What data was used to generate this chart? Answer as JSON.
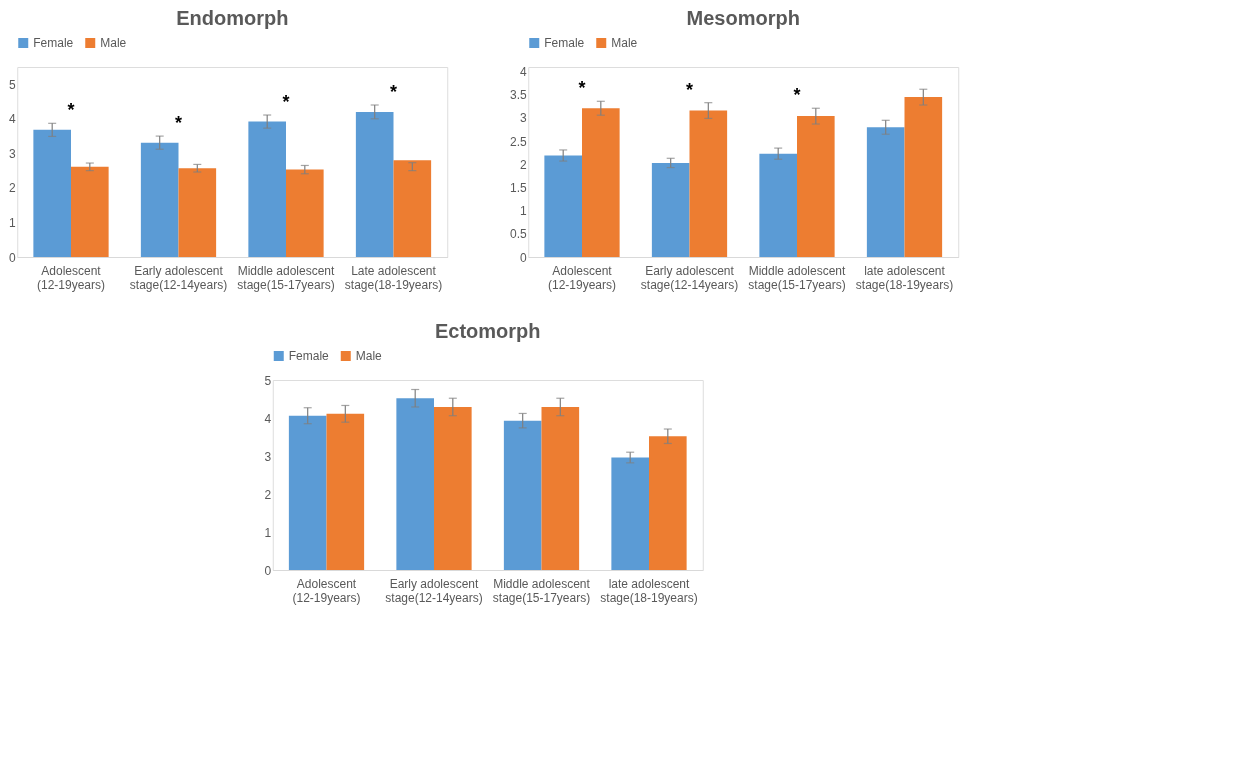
{
  "chart_data": [
    {
      "type": "bar",
      "title": "Endomorph",
      "categories": [
        "Adolescent (12-19years)",
        "Early adolescent stage(12-14years)",
        "Middle adolescent stage(15-17years)",
        "Late adolescent stage(18-19years)"
      ],
      "series": [
        {
          "name": "Female",
          "color": "#5b9bd5",
          "values": [
            3.68,
            3.31,
            3.92,
            4.2
          ],
          "errors": [
            0.19,
            0.19,
            0.19,
            0.2
          ]
        },
        {
          "name": "Male",
          "color": "#ed7d31",
          "values": [
            2.61,
            2.57,
            2.53,
            2.8
          ],
          "errors": [
            0.11,
            0.11,
            0.12,
            [
              2.5,
              2.73
            ]
          ]
        }
      ],
      "ylim": [
        0,
        5.5
      ],
      "yticks": [
        0,
        1,
        2,
        3,
        4,
        5
      ],
      "grid": false,
      "legend": "top",
      "annotations": [
        "*",
        "*",
        "*",
        "*"
      ]
    },
    {
      "type": "bar",
      "title": "Mesomorph",
      "categories": [
        "Adolescent (12-19years)",
        "Early adolescent stage(12-14years)",
        "Middle adolescent stage(15-17years)",
        "late adolescent stage(18-19years)"
      ],
      "series": [
        {
          "name": "Female",
          "color": "#5b9bd5",
          "values": [
            2.19,
            2.03,
            2.23,
            2.8
          ],
          "errors": [
            0.12,
            0.1,
            0.12,
            0.15
          ]
        },
        {
          "name": "Male",
          "color": "#ed7d31",
          "values": [
            3.21,
            3.16,
            3.04,
            3.45
          ],
          "errors": [
            0.15,
            0.17,
            0.17,
            0.17
          ]
        }
      ],
      "ylim": [
        0,
        4.1
      ],
      "yticks": [
        0,
        0.5,
        1,
        1.5,
        2,
        2.5,
        3,
        3.5,
        4
      ],
      "grid": false,
      "legend": "top",
      "annotations": [
        "*",
        "*",
        "*"
      ]
    },
    {
      "type": "bar",
      "title": "Ectomorph",
      "categories": [
        "Adolescent (12-19years)",
        "Early adolescent stage(12-14years)",
        "Middle adolescent stage(15-17years)",
        "late adolescent stage(18-19years)"
      ],
      "series": [
        {
          "name": "Female",
          "color": "#5b9bd5",
          "values": [
            4.06,
            4.52,
            3.93,
            2.96
          ],
          "errors": [
            0.21,
            0.23,
            0.19,
            0.14
          ]
        },
        {
          "name": "Male",
          "color": "#ed7d31",
          "values": [
            4.11,
            4.29,
            4.29,
            3.52
          ],
          "errors": [
            0.22,
            0.23,
            0.23,
            0.19
          ]
        }
      ],
      "ylim": [
        0,
        5
      ],
      "yticks": [
        0,
        1,
        2,
        3,
        4,
        5
      ],
      "grid": false,
      "legend": "top"
    }
  ]
}
